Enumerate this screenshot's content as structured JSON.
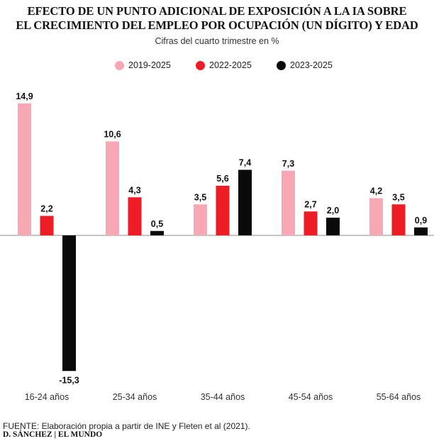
{
  "header": {
    "title_line1": "EFECTO DE UN PUNTO ADICIONAL DE EXPOSICIÓN A LA IA SOBRE",
    "title_line2": "EL CRECIMIENTO DEL EMPLEO POR OCUPACIÓN (UN DÍGITO) Y EDAD",
    "subtitle": "Cifras del cuarto trimestre en %"
  },
  "colors": {
    "s2019": "#f7a8b4",
    "s2022": "#ee1c25",
    "s2023": "#0a0a0a"
  },
  "chart_data": {
    "type": "bar",
    "categories": [
      "16-24 años",
      "25-34 años",
      "35-44 años",
      "45-54 años",
      "55-64 años"
    ],
    "series": [
      {
        "name": "2019-2025",
        "values": [
          14.9,
          10.6,
          3.5,
          7.3,
          4.2
        ],
        "labels": [
          "14,9",
          "10,6",
          "3,5",
          "7,3",
          "4,2"
        ]
      },
      {
        "name": "2022-2025",
        "values": [
          2.2,
          4.3,
          5.6,
          2.7,
          3.5
        ],
        "labels": [
          "2,2",
          "4,3",
          "5,6",
          "2,7",
          "3,5"
        ]
      },
      {
        "name": "2023-2025",
        "values": [
          -15.3,
          0.5,
          7.4,
          2.0,
          0.9
        ],
        "labels": [
          "-15,3",
          "0,5",
          "7,4",
          "2,0",
          "0,9"
        ]
      }
    ],
    "legend_position": "top",
    "grid": false
  },
  "footer": {
    "source": "FUENTE: Elaboración propia a partir de INE y Fleten et al (2021).",
    "credit": "D. SÁNCHEZ | EL MUNDO"
  }
}
